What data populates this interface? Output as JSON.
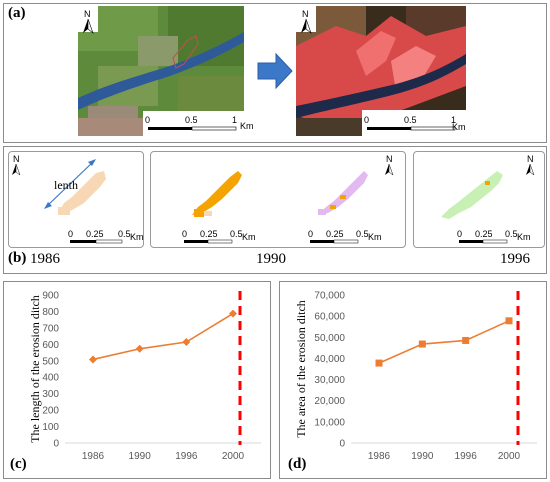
{
  "panels": {
    "a": "(a)",
    "b": "(b)",
    "c": "(c)",
    "d": "(d)"
  },
  "panel_a": {
    "scale_ticks": [
      "0",
      "0.5",
      "1"
    ],
    "scale_unit": "Km",
    "north": "N"
  },
  "panel_b": {
    "length_label": "lenth",
    "scale_ticks": [
      "0",
      "0.25",
      "0.5"
    ],
    "scale_unit": "Km",
    "north": "N",
    "years": [
      "1986",
      "1990",
      "1996"
    ]
  },
  "colors": {
    "series": "#ed7d31",
    "marker_line": "#ff0000",
    "arrow": "#3c78c8",
    "gully_1986": "#f7d7b4",
    "gully_1990": "#f4a300",
    "gully_1990b": "#e2b9f0",
    "gully_1996": "#c8f0b4"
  },
  "chart_data": [
    {
      "type": "line",
      "ylabel": "The length of the erosion ditch",
      "categories": [
        "1986",
        "1990",
        "1996",
        "2000"
      ],
      "values": [
        508,
        573,
        614,
        787
      ],
      "ylim": [
        0,
        900
      ],
      "yticks": [
        "0",
        "100",
        "200",
        "300",
        "400",
        "500",
        "600",
        "700",
        "800",
        "900"
      ],
      "grid": false,
      "marker": "diamond"
    },
    {
      "type": "line",
      "ylabel": "The area of the erosion ditch",
      "categories": [
        "1986",
        "1990",
        "1996",
        "2000"
      ],
      "values": [
        37800,
        46800,
        48500,
        57800
      ],
      "ylim": [
        0,
        70000
      ],
      "yticks": [
        "0",
        "10,000",
        "20,000",
        "30,000",
        "40,000",
        "50,000",
        "60,000",
        "70,000"
      ],
      "grid": false,
      "marker": "square"
    }
  ]
}
